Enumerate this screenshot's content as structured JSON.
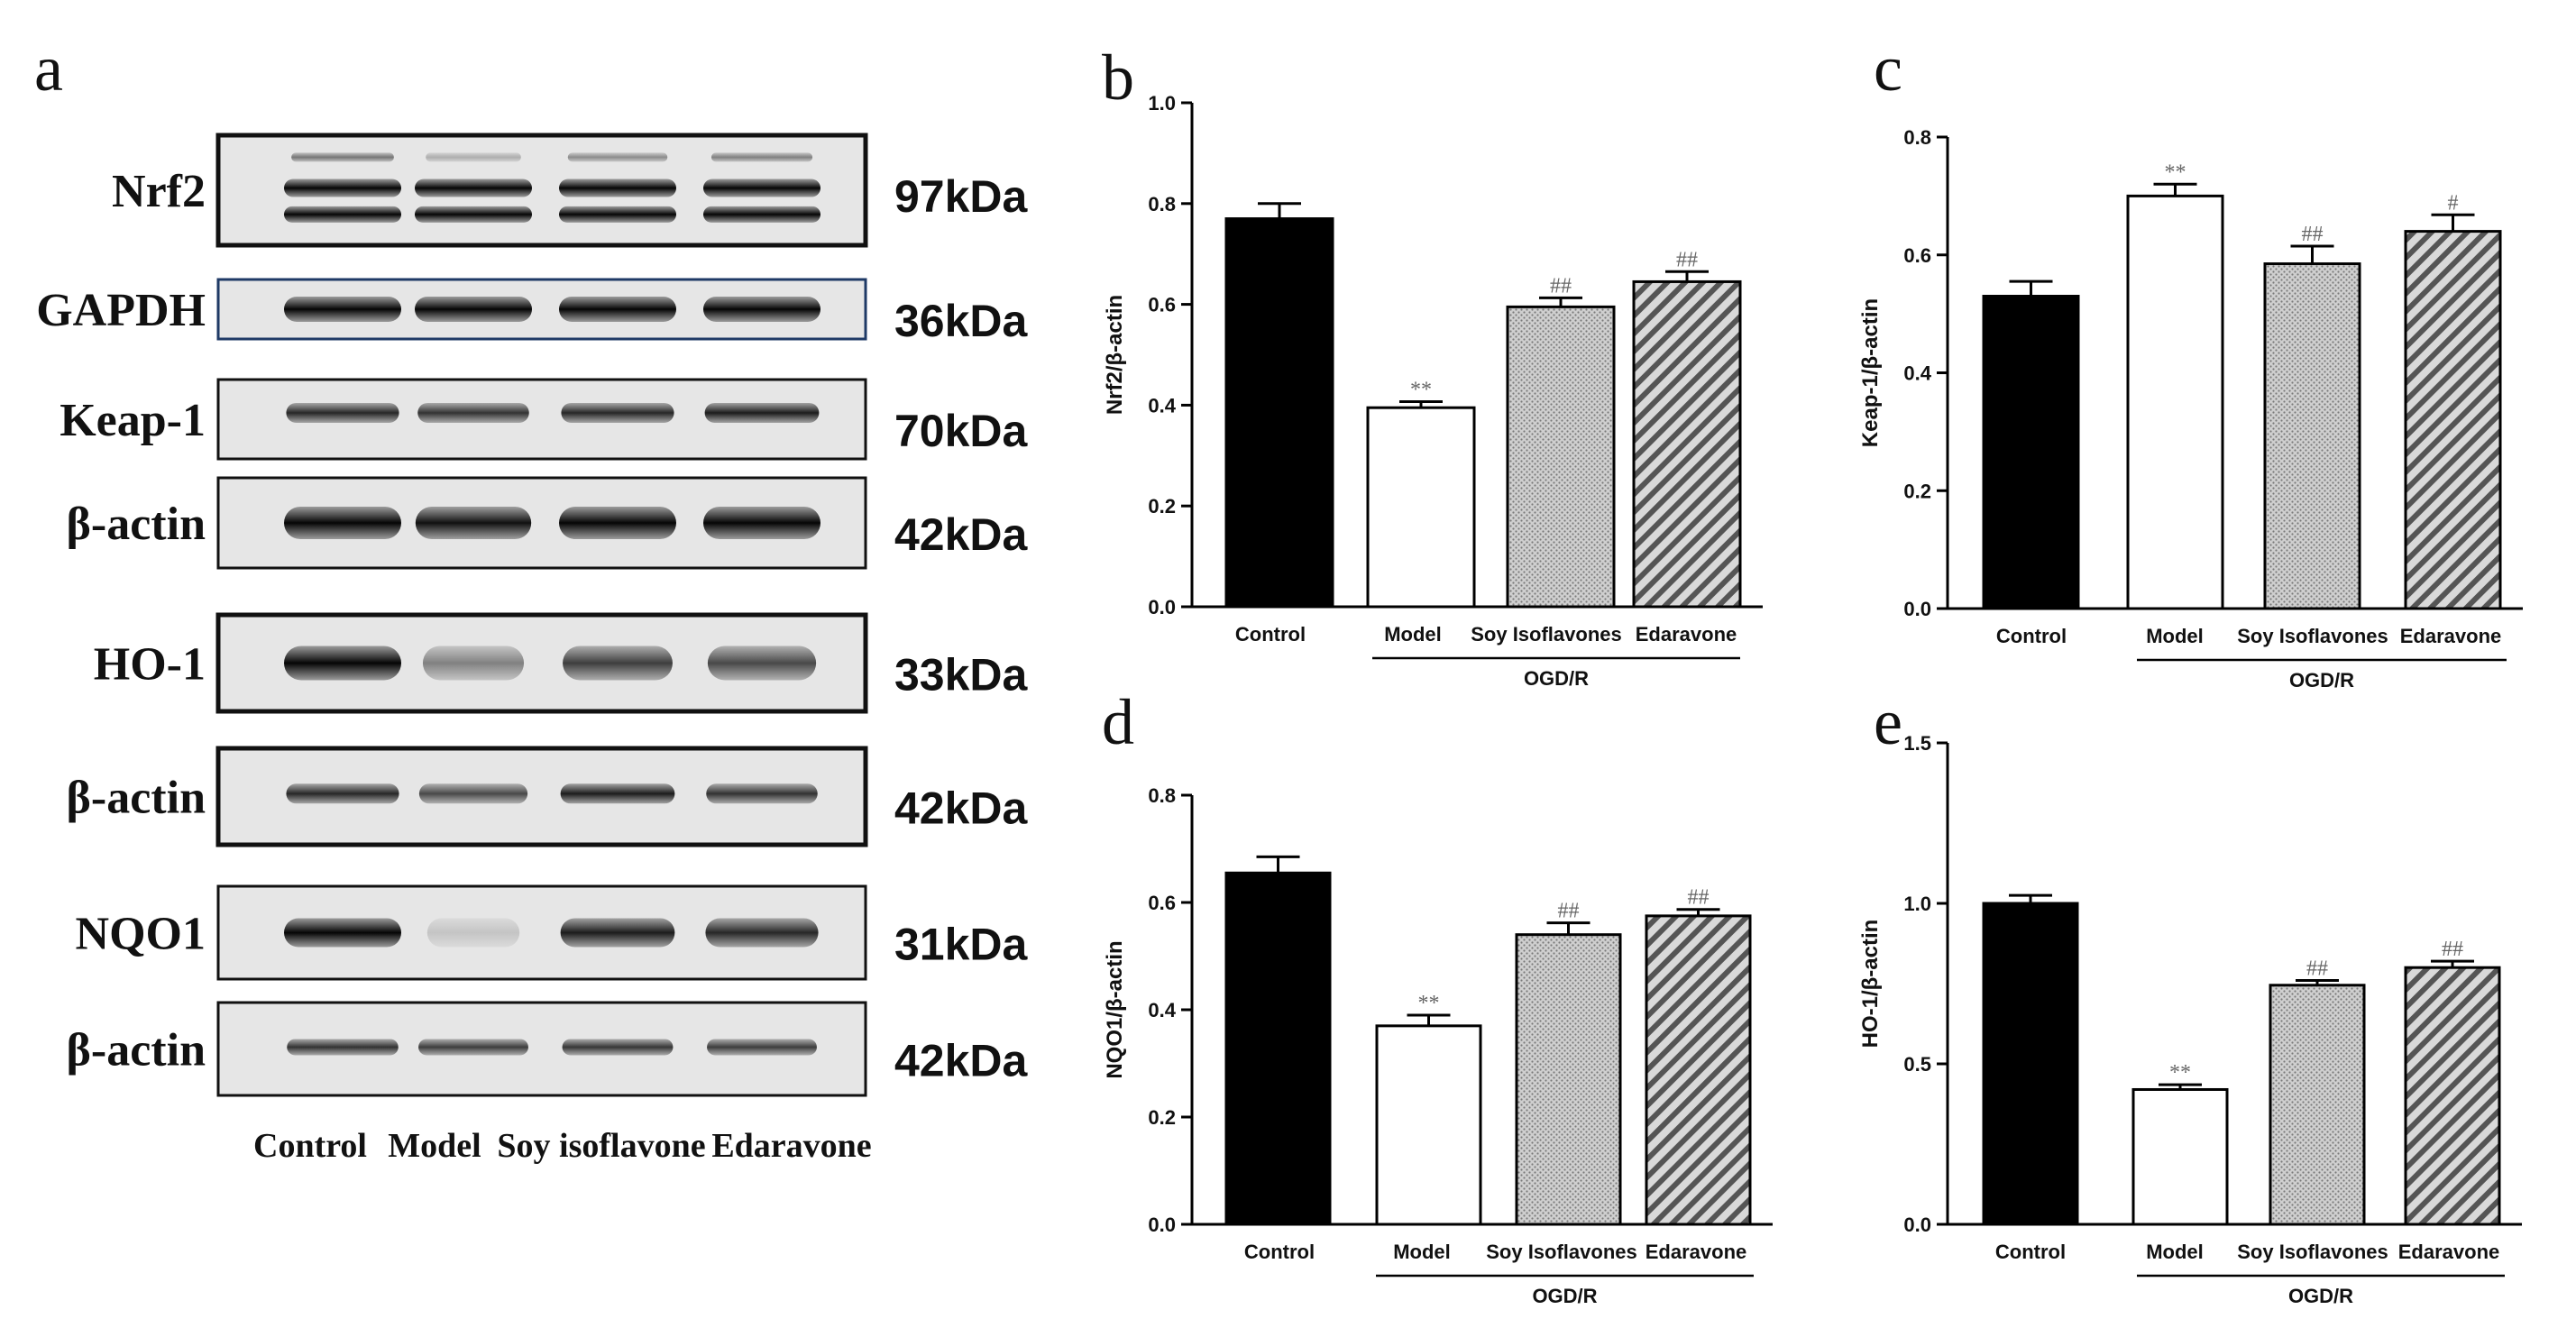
{
  "western_blot": {
    "panel_letter": "a",
    "lanes": [
      "Control",
      "Model",
      "Soy isoflavone",
      "Edaravone"
    ],
    "blots": [
      {
        "protein": "Nrf2",
        "kda": "97kDa"
      },
      {
        "protein": "GAPDH",
        "kda": "36kDa"
      },
      {
        "protein": "Keap-1",
        "kda": "70kDa"
      },
      {
        "protein": "β-actin",
        "kda": "42kDa"
      },
      {
        "protein": "HO-1",
        "kda": "33kDa"
      },
      {
        "protein": "β-actin",
        "kda": "42kDa"
      },
      {
        "protein": "NQO1",
        "kda": "31kDa"
      },
      {
        "protein": "β-actin",
        "kda": "42kDa"
      }
    ]
  },
  "colors": {
    "control_fill": "#000000",
    "model_fill": "#ffffff",
    "soy_fill_pattern": "dotted-grey",
    "edaravone_fill_pattern": "diagonal-hatch",
    "significance_marks": "#666666"
  },
  "chart_data": [
    {
      "panel": "b",
      "type": "bar",
      "categories": [
        "Control",
        "Model",
        "Soy Isoflavones",
        "Edaravone"
      ],
      "values": [
        0.77,
        0.395,
        0.595,
        0.645
      ],
      "errors": [
        0.03,
        0.012,
        0.018,
        0.02
      ],
      "significance": [
        "",
        "**",
        "##",
        "##"
      ],
      "ylabel": "Nrf2/β-actin",
      "ylim": [
        0,
        1.0
      ],
      "yticks": [
        "0.0",
        "0.2",
        "0.4",
        "0.6",
        "0.8",
        "1.0"
      ],
      "group_label": "OGD/R",
      "grid": false
    },
    {
      "panel": "c",
      "type": "bar",
      "categories": [
        "Control",
        "Model",
        "Soy Isoflavones",
        "Edaravone"
      ],
      "values": [
        0.53,
        0.7,
        0.585,
        0.64
      ],
      "errors": [
        0.025,
        0.02,
        0.03,
        0.028
      ],
      "significance": [
        "",
        "**",
        "##",
        "#"
      ],
      "ylabel": "Keap-1/β-actin",
      "ylim": [
        0,
        0.8
      ],
      "yticks": [
        "0.0",
        "0.2",
        "0.4",
        "0.6",
        "0.8"
      ],
      "group_label": "OGD/R",
      "grid": false
    },
    {
      "panel": "d",
      "type": "bar",
      "categories": [
        "Control",
        "Model",
        "Soy Isoflavones",
        "Edaravone"
      ],
      "values": [
        0.655,
        0.37,
        0.54,
        0.575
      ],
      "errors": [
        0.03,
        0.02,
        0.022,
        0.012
      ],
      "significance": [
        "",
        "**",
        "##",
        "##"
      ],
      "ylabel": "NQO1/β-actin",
      "ylim": [
        0,
        0.8
      ],
      "yticks": [
        "0.0",
        "0.2",
        "0.4",
        "0.6",
        "0.8"
      ],
      "group_label": "OGD/R",
      "grid": false
    },
    {
      "panel": "e",
      "type": "bar",
      "categories": [
        "Control",
        "Model",
        "Soy Isoflavones",
        "Edaravone"
      ],
      "values": [
        1.0,
        0.42,
        0.745,
        0.8
      ],
      "errors": [
        0.025,
        0.015,
        0.015,
        0.02
      ],
      "significance": [
        "",
        "**",
        "##",
        "##"
      ],
      "ylabel": "HO-1/β-actin",
      "ylim": [
        0,
        1.5
      ],
      "yticks": [
        "0.0",
        "0.5",
        "1.0",
        "1.5"
      ],
      "group_label": "OGD/R",
      "grid": false
    }
  ]
}
